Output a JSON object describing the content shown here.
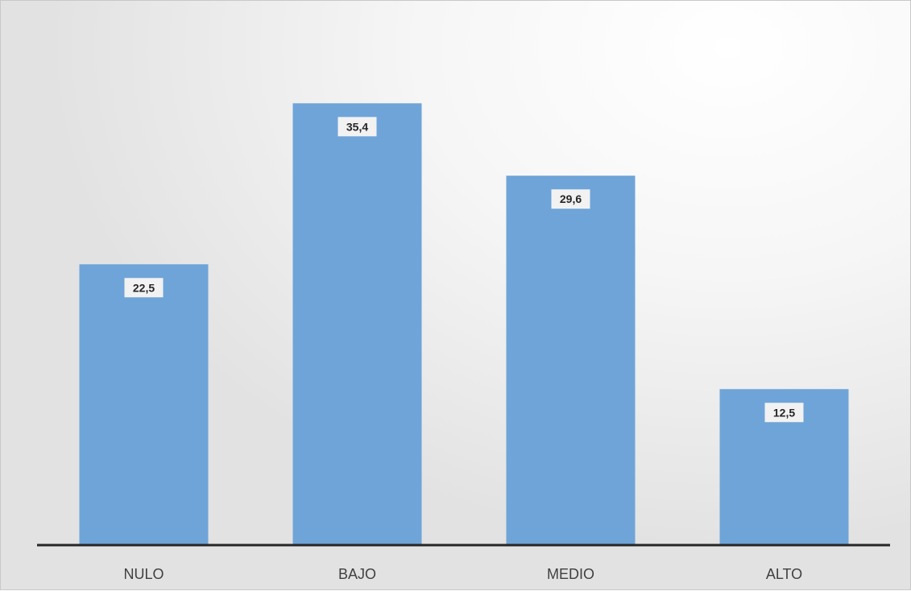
{
  "chart_data": {
    "type": "bar",
    "categories": [
      "NULO",
      "BAJO",
      "MEDIO",
      "ALTO"
    ],
    "values": [
      22.5,
      35.4,
      29.6,
      12.5
    ],
    "data_labels": [
      "22,5",
      "35,4",
      "29,6",
      "12,5"
    ],
    "title": "",
    "xlabel": "",
    "ylabel": "",
    "ylim": [
      0,
      40
    ],
    "grid": false,
    "legend": "none",
    "colors": {
      "bar": "#6fa4d8",
      "label_box": "#f2f2f2",
      "axis": "#262626"
    }
  }
}
